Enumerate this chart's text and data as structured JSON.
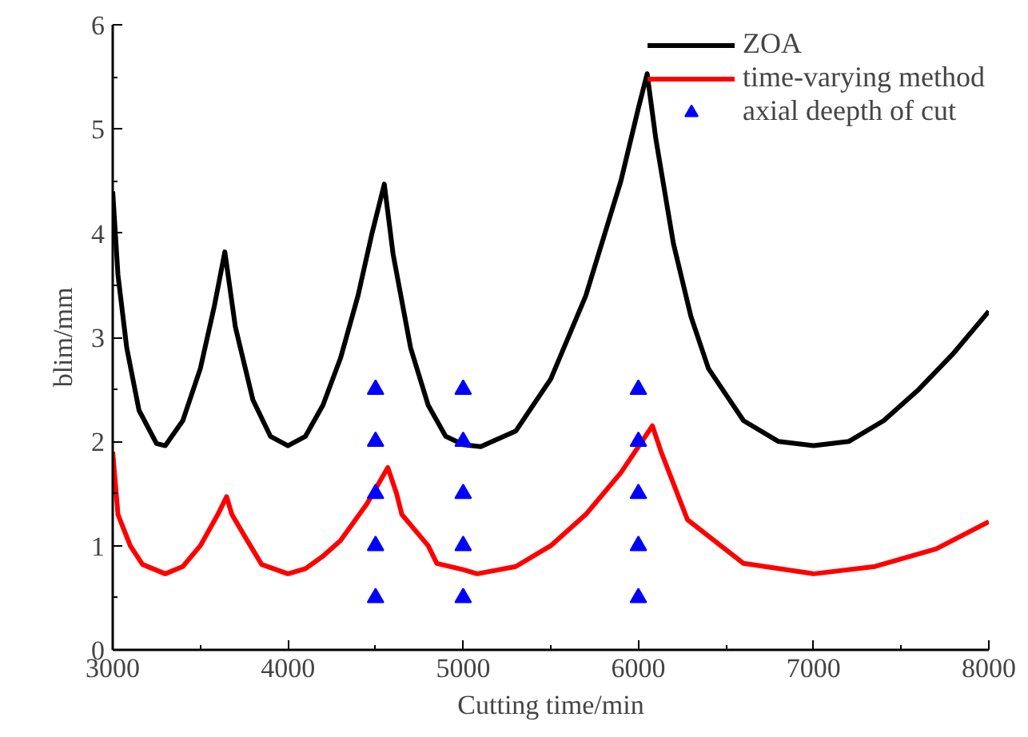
{
  "chart_data": {
    "type": "line",
    "xlabel": "Cutting time/min",
    "ylabel": "blim/mm",
    "xlim": [
      3000,
      8000
    ],
    "ylim": [
      0,
      6
    ],
    "xticks": [
      3000,
      4000,
      5000,
      6000,
      7000,
      8000
    ],
    "yticks": [
      0,
      1,
      2,
      3,
      4,
      5,
      6
    ],
    "legend": "top right",
    "grid": false,
    "series": [
      {
        "name": "ZOA",
        "color": "#000000",
        "x": [
          3000,
          3030,
          3080,
          3150,
          3250,
          3300,
          3400,
          3500,
          3580,
          3640,
          3700,
          3800,
          3900,
          4000,
          4100,
          4200,
          4300,
          4400,
          4480,
          4550,
          4600,
          4700,
          4800,
          4900,
          5000,
          5100,
          5300,
          5500,
          5700,
          5900,
          6000,
          6050,
          6100,
          6200,
          6300,
          6400,
          6600,
          6800,
          7000,
          7200,
          7400,
          7600,
          7800,
          8000
        ],
        "values": [
          4.4,
          3.6,
          2.9,
          2.3,
          1.98,
          1.96,
          2.2,
          2.7,
          3.3,
          3.82,
          3.1,
          2.4,
          2.05,
          1.96,
          2.05,
          2.35,
          2.8,
          3.4,
          4.0,
          4.47,
          3.8,
          2.9,
          2.35,
          2.05,
          1.97,
          1.95,
          2.1,
          2.6,
          3.4,
          4.5,
          5.2,
          5.53,
          4.9,
          3.9,
          3.2,
          2.7,
          2.2,
          2.0,
          1.96,
          2.0,
          2.2,
          2.5,
          2.85,
          3.25
        ]
      },
      {
        "name": "time-varying method",
        "color": "#ff0000",
        "x": [
          3000,
          3030,
          3100,
          3170,
          3300,
          3400,
          3500,
          3600,
          3650,
          3680,
          3750,
          3850,
          4000,
          4100,
          4200,
          4300,
          4450,
          4570,
          4620,
          4650,
          4800,
          4850,
          5000,
          5080,
          5300,
          5500,
          5700,
          5900,
          6000,
          6080,
          6130,
          6280,
          6600,
          7000,
          7350,
          7700,
          8000
        ],
        "values": [
          1.9,
          1.3,
          1.0,
          0.82,
          0.73,
          0.8,
          1.0,
          1.3,
          1.47,
          1.3,
          1.1,
          0.82,
          0.73,
          0.78,
          0.9,
          1.05,
          1.4,
          1.75,
          1.5,
          1.3,
          1.0,
          0.83,
          0.77,
          0.73,
          0.8,
          1.0,
          1.3,
          1.7,
          1.95,
          2.15,
          1.9,
          1.25,
          0.83,
          0.73,
          0.8,
          0.97,
          1.23
        ]
      },
      {
        "name": "axial deepth of cut",
        "type": "scatter",
        "marker": "triangle",
        "color": "#0000ff",
        "x": [
          4500,
          4500,
          4500,
          4500,
          4500,
          5000,
          5000,
          5000,
          5000,
          5000,
          6000,
          6000,
          6000,
          6000,
          6000
        ],
        "values": [
          0.5,
          1,
          1.5,
          2,
          2.5,
          0.5,
          1,
          1.5,
          2,
          2.5,
          0.5,
          1,
          1.5,
          2,
          2.5
        ]
      }
    ]
  }
}
